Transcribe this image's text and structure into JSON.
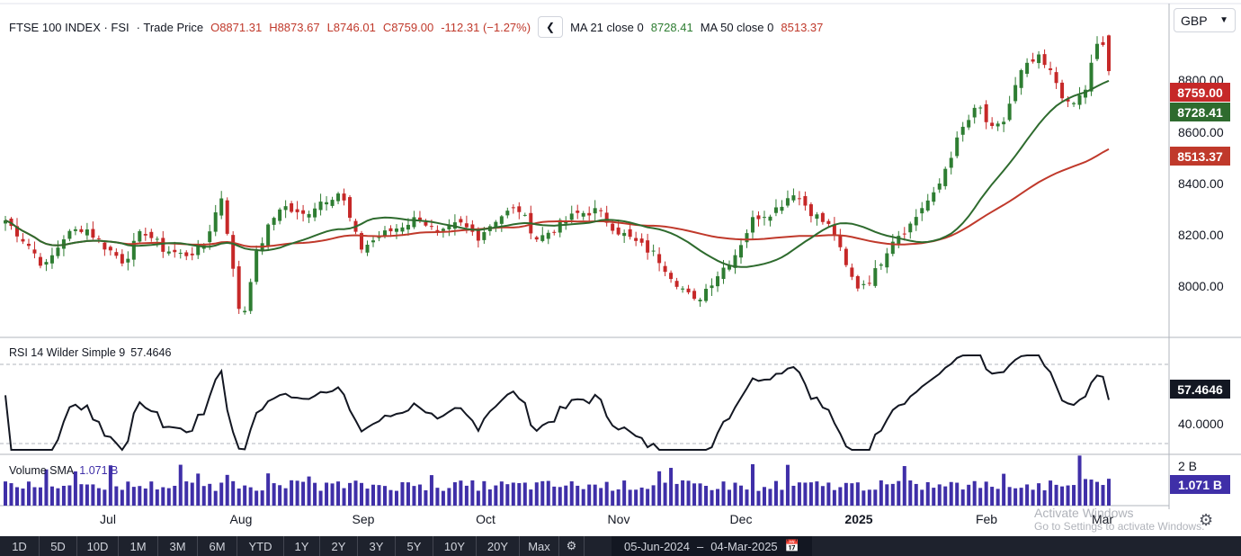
{
  "header": {
    "symbol": "FTSE 100 INDEX · FSI",
    "price_type": "· Trade Price",
    "open": "O8871.31",
    "high": "H8873.67",
    "low": "L8746.01",
    "close": "C8759.00",
    "change": "-112.31 (−1.27%)",
    "ma21_label": "MA 21 close 0",
    "ma21_value": "8728.41",
    "ma50_label": "MA 50 close 0",
    "ma50_value": "8513.37",
    "collapse_icon": "chevron-left-icon"
  },
  "currency": {
    "value": "GBP",
    "icon": "chevron-down-icon"
  },
  "price_tags": {
    "last": "8759.00",
    "ma21": "8728.41",
    "ma50": "8513.37"
  },
  "price_axis": [
    "8800.00",
    "8600.00",
    "8400.00",
    "8200.00",
    "8000.00"
  ],
  "rsi_panel": {
    "label": "RSI 14 Wilder Simple 9",
    "value": "57.4646",
    "tag": "57.4646",
    "axis": "40.0000"
  },
  "volume_panel": {
    "label": "Volume SMA",
    "value": "1.071 B",
    "tag": "1.071 B",
    "axis": "2 B"
  },
  "x_axis": [
    "Jul",
    "Aug",
    "Sep",
    "Oct",
    "Nov",
    "Dec",
    "2025",
    "Feb",
    "Mar"
  ],
  "watermark": {
    "title": "Activate Windows",
    "subtitle": "Go to Settings to activate Windows."
  },
  "toolbar": {
    "ranges": [
      "1D",
      "5D",
      "10D",
      "1M",
      "3M",
      "6M",
      "YTD",
      "1Y",
      "2Y",
      "3Y",
      "5Y",
      "10Y",
      "20Y",
      "Max"
    ],
    "settings_icon": "gear-icon",
    "date_from": "05-Jun-2024",
    "date_sep": "–",
    "date_to": "04-Mar-2025",
    "calendar_icon": "calendar-icon"
  },
  "colors": {
    "up": "#2e7d32",
    "down": "#c62828",
    "ma21": "#2e6b2e",
    "ma50": "#c0392b",
    "rsi": "#131722",
    "volume": "#3f2fa8"
  },
  "chart_data": [
    {
      "type": "candlestick",
      "anchors": [
        [
          0,
          8290
        ],
        [
          6,
          8210
        ],
        [
          10,
          8140
        ],
        [
          15,
          8240
        ],
        [
          20,
          8270
        ],
        [
          25,
          8210
        ],
        [
          30,
          8160
        ],
        [
          35,
          8260
        ],
        [
          40,
          8200
        ],
        [
          45,
          8180
        ],
        [
          50,
          8200
        ],
        [
          55,
          8370
        ],
        [
          58,
          8110
        ],
        [
          60,
          7960
        ],
        [
          63,
          8160
        ],
        [
          66,
          8250
        ],
        [
          70,
          8340
        ],
        [
          75,
          8300
        ],
        [
          80,
          8350
        ],
        [
          85,
          8380
        ],
        [
          90,
          8200
        ],
        [
          95,
          8240
        ],
        [
          100,
          8270
        ],
        [
          105,
          8300
        ],
        [
          110,
          8240
        ],
        [
          115,
          8280
        ],
        [
          120,
          8240
        ],
        [
          125,
          8300
        ],
        [
          130,
          8330
        ],
        [
          135,
          8230
        ],
        [
          140,
          8270
        ],
        [
          145,
          8310
        ],
        [
          150,
          8320
        ],
        [
          155,
          8260
        ],
        [
          160,
          8220
        ],
        [
          165,
          8180
        ],
        [
          170,
          8100
        ],
        [
          175,
          8030
        ],
        [
          180,
          8110
        ],
        [
          185,
          8180
        ],
        [
          190,
          8300
        ],
        [
          195,
          8320
        ],
        [
          200,
          8380
        ],
        [
          205,
          8310
        ],
        [
          210,
          8260
        ],
        [
          213,
          8150
        ],
        [
          216,
          8080
        ],
        [
          220,
          8110
        ],
        [
          225,
          8230
        ],
        [
          230,
          8280
        ],
        [
          233,
          8340
        ],
        [
          236,
          8370
        ],
        [
          239,
          8470
        ],
        [
          243,
          8580
        ],
        [
          247,
          8650
        ],
        [
          250,
          8570
        ],
        [
          253,
          8590
        ],
        [
          256,
          8700
        ],
        [
          258,
          8760
        ],
        [
          262,
          8800
        ],
        [
          266,
          8740
        ],
        [
          270,
          8640
        ],
        [
          274,
          8700
        ],
        [
          276,
          8800
        ],
        [
          278,
          8870
        ],
        [
          280,
          8759
        ]
      ],
      "last": {
        "open": 8871.31,
        "high": 8873.67,
        "low": 8746.01,
        "close": 8759.0
      },
      "ma21_last": 8728.41,
      "ma50_last": 8513.37,
      "ylim": [
        7930,
        8960
      ]
    },
    {
      "type": "line",
      "name": "RSI 14 Wilder Simple 9",
      "last": 57.4646,
      "ylim": [
        30,
        82
      ]
    },
    {
      "type": "bar",
      "name": "Volume",
      "sma_last": 1.071,
      "unit": "B",
      "ylim": [
        0,
        2.3
      ]
    }
  ]
}
